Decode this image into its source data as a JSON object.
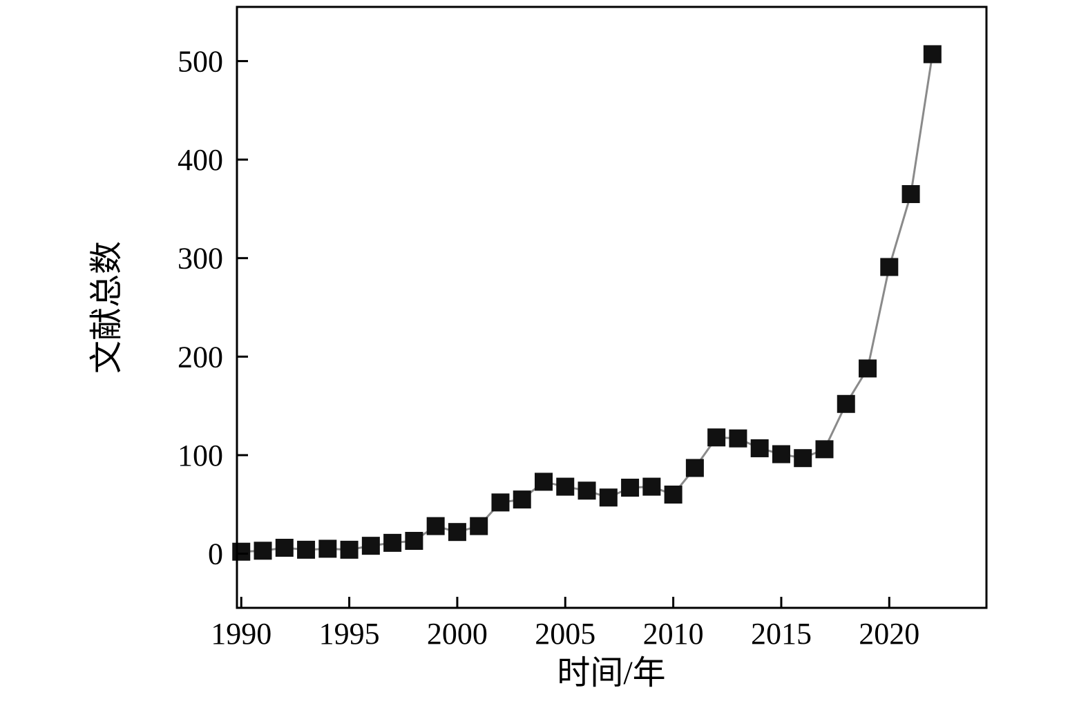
{
  "chart_data": {
    "type": "line",
    "title": "",
    "xlabel": "时间/年",
    "ylabel": "文献总数",
    "x": [
      1990,
      1991,
      1992,
      1993,
      1994,
      1995,
      1996,
      1997,
      1998,
      1999,
      2000,
      2001,
      2002,
      2003,
      2004,
      2005,
      2006,
      2007,
      2008,
      2009,
      2010,
      2011,
      2012,
      2013,
      2014,
      2015,
      2016,
      2017,
      2018,
      2019,
      2020,
      2021,
      2022
    ],
    "values": [
      2,
      3,
      6,
      4,
      5,
      4,
      8,
      11,
      13,
      28,
      22,
      28,
      52,
      55,
      73,
      68,
      64,
      57,
      67,
      68,
      60,
      87,
      118,
      117,
      107,
      101,
      97,
      106,
      152,
      188,
      291,
      365,
      507
    ],
    "x_ticks": [
      1990,
      1995,
      2000,
      2005,
      2010,
      2015,
      2020
    ],
    "y_ticks": [
      0,
      100,
      200,
      300,
      400,
      500
    ],
    "xlim": [
      1989.8,
      2024.5
    ],
    "ylim": [
      -55,
      555
    ],
    "grid": "off",
    "legend": "none",
    "marker": "filled-square",
    "marker_color": "#111111",
    "line_color": "#8a8a8a"
  }
}
